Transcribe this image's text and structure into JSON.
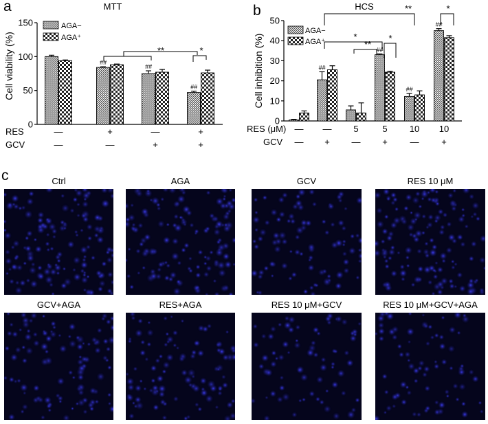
{
  "panel_labels": {
    "a": "a",
    "b": "b",
    "c": "c"
  },
  "patterns": {
    "minus_color": "#555555",
    "plus_color": "#222222"
  },
  "chart_data": [
    {
      "type": "bar",
      "panel": "a",
      "title": "MTT",
      "ylabel": "Cell viability (%)",
      "ylim": [
        0,
        150
      ],
      "yticks": [
        "0",
        "50",
        "100",
        "150"
      ],
      "ytick_values": [
        0,
        50,
        100,
        150
      ],
      "legend": {
        "AGA-": "AGA−",
        "AGA+": "AGA⁺"
      },
      "series": [
        {
          "name": "AGA−",
          "values": [
            100,
            84,
            75,
            47
          ],
          "errors": [
            2,
            1,
            4,
            2
          ]
        },
        {
          "name": "AGA⁺",
          "values": [
            94,
            88,
            77,
            76
          ],
          "errors": [
            1,
            1,
            4,
            4
          ]
        }
      ],
      "treatments": [
        {
          "name": "RES",
          "values": [
            "—",
            "+",
            "—",
            "+"
          ]
        },
        {
          "name": "GCV",
          "values": [
            "—",
            "—",
            "+",
            "+"
          ]
        }
      ],
      "bar_labels": [
        {
          "group": 1,
          "series": 0,
          "text": "##"
        },
        {
          "group": 2,
          "series": 0,
          "text": "##"
        },
        {
          "group": 3,
          "series": 0,
          "text": "##"
        }
      ],
      "significance": [
        "**",
        "*"
      ]
    },
    {
      "type": "bar",
      "panel": "b",
      "title": "HCS",
      "ylabel": "Cell inhibition (%)",
      "ylim": [
        0,
        50
      ],
      "yticks": [
        "0",
        "10",
        "20",
        "30",
        "40",
        "50"
      ],
      "ytick_values": [
        0,
        10,
        20,
        30,
        40,
        50
      ],
      "legend": {
        "AGA-": "AGA−",
        "AGA+": "AGA⁺"
      },
      "series": [
        {
          "name": "AGA−",
          "values": [
            0.5,
            20.5,
            5.5,
            33,
            12.2,
            45
          ],
          "errors": [
            0.3,
            4,
            2,
            0.4,
            1.5,
            1
          ]
        },
        {
          "name": "AGA⁺",
          "values": [
            4,
            25.5,
            4,
            24.3,
            13,
            41.5
          ],
          "errors": [
            1,
            2,
            5,
            0.5,
            2,
            1
          ]
        }
      ],
      "treatments": [
        {
          "name": "RES (μM)",
          "values": [
            "—",
            "—",
            "5",
            "5",
            "10",
            "10"
          ]
        },
        {
          "name": "GCV",
          "values": [
            "—",
            "+",
            "—",
            "+",
            "—",
            "+"
          ]
        }
      ],
      "bar_labels": [
        {
          "group": 1,
          "series": 0,
          "text": "##"
        },
        {
          "group": 3,
          "series": 0,
          "text": "##"
        },
        {
          "group": 4,
          "series": 0,
          "text": "##"
        },
        {
          "group": 5,
          "series": 0,
          "text": "##"
        }
      ],
      "significance": [
        "**",
        "*",
        "*",
        "**",
        "*"
      ]
    }
  ],
  "micrographs": {
    "labels": [
      "Ctrl",
      "AGA",
      "GCV",
      "RES 10 μM",
      "GCV+AGA",
      "RES+AGA",
      "RES 10 μM+GCV",
      "RES 10 μM+GCV+AGA"
    ]
  }
}
